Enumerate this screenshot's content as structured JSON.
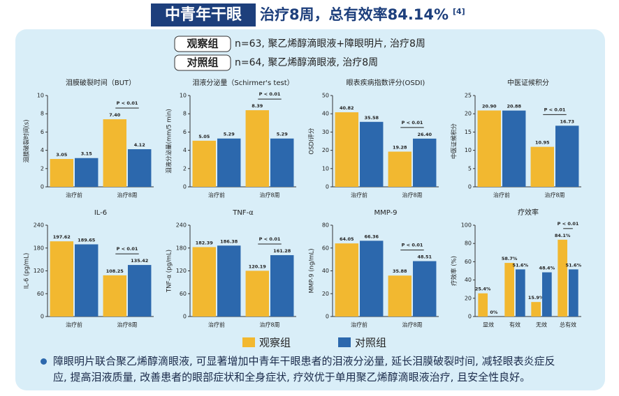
{
  "header": {
    "tag": "中青年干眼",
    "title": "治疗8周，总有效率84.14%",
    "ref": "[4]"
  },
  "groups": [
    {
      "label": "观察组",
      "desc": "n=63, 聚乙烯醇滴眼液+障眼明片, 治疗8周"
    },
    {
      "label": "对照组",
      "desc": "n=64, 聚乙烯醇滴眼液, 治疗8周"
    }
  ],
  "legend": [
    {
      "name": "观察组",
      "color": "#f2b830"
    },
    {
      "name": "对照组",
      "color": "#2c68ad"
    }
  ],
  "chart_data": [
    {
      "type": "bar",
      "title": "泪膜破裂时间（BUT）",
      "y_label": "泪膜破裂时间(s)",
      "categories": [
        "治疗前",
        "治疗8周"
      ],
      "series": [
        {
          "values": [
            3.05,
            7.4
          ],
          "value_labels": [
            "3.05",
            "7.40"
          ]
        },
        {
          "values": [
            3.15,
            4.12
          ]
        }
      ],
      "ylim": [
        0,
        10
      ],
      "yticks": [
        0,
        2,
        4,
        6,
        8,
        10
      ],
      "annotation": {
        "text": "P < 0.01",
        "category": 1
      }
    },
    {
      "type": "bar",
      "title": "泪液分泌量（Schirmer's test）",
      "y_label": "泪液分泌量(mm/5 min)",
      "categories": [
        "治疗前",
        "治疗8周"
      ],
      "series": [
        {
          "values": [
            5.05,
            8.39
          ]
        },
        {
          "values": [
            5.29,
            5.29
          ]
        }
      ],
      "ylim": [
        0,
        10
      ],
      "yticks": [
        0,
        2,
        4,
        6,
        8,
        10
      ],
      "annotation": {
        "text": "P < 0.01",
        "category": 1
      }
    },
    {
      "type": "bar",
      "title": "眼表疾病指数评分(OSDI)",
      "y_label": "OSDI评分",
      "categories": [
        "治疗前",
        "治疗8周"
      ],
      "series": [
        {
          "values": [
            40.82,
            19.28
          ]
        },
        {
          "values": [
            35.58,
            26.4
          ],
          "value_labels": [
            "35.58",
            "26.40"
          ]
        }
      ],
      "ylim": [
        0,
        50
      ],
      "yticks": [
        0,
        10,
        20,
        30,
        40,
        50
      ],
      "annotation": {
        "text": "P < 0.01",
        "category": 1
      }
    },
    {
      "type": "bar",
      "title": "中医证候积分",
      "y_label": "中医证候积分",
      "categories": [
        "治疗前",
        "治疗8周"
      ],
      "series": [
        {
          "values": [
            20.9,
            10.95
          ],
          "value_labels": [
            "20.90",
            "10.95"
          ]
        },
        {
          "values": [
            20.88,
            16.73
          ]
        }
      ],
      "ylim": [
        0,
        25
      ],
      "yticks": [
        0,
        5,
        10,
        15,
        20,
        25
      ],
      "annotation": {
        "text": "P < 0.01",
        "category": 1
      }
    },
    {
      "type": "bar",
      "title": "IL-6",
      "y_label": "IL-6 (pg/mL)",
      "categories": [
        "治疗前",
        "治疗8周"
      ],
      "series": [
        {
          "values": [
            197.62,
            108.25
          ]
        },
        {
          "values": [
            189.65,
            135.42
          ]
        }
      ],
      "ylim": [
        0,
        240
      ],
      "yticks": [
        0,
        60,
        120,
        180,
        240
      ],
      "annotation": {
        "text": "P < 0.01",
        "category": 1
      }
    },
    {
      "type": "bar",
      "title": "TNF-α",
      "y_label": "TNF-α (pg/mL)",
      "categories": [
        "治疗前",
        "治疗8周"
      ],
      "series": [
        {
          "values": [
            182.39,
            120.19
          ]
        },
        {
          "values": [
            186.38,
            161.28
          ]
        }
      ],
      "ylim": [
        0,
        240
      ],
      "yticks": [
        0,
        60,
        120,
        180,
        240
      ],
      "annotation": {
        "text": "P < 0.01",
        "category": 1
      }
    },
    {
      "type": "bar",
      "title": "MMP-9",
      "y_label": "MMP-9 (ng/mL)",
      "categories": [
        "治疗前",
        "治疗8周"
      ],
      "series": [
        {
          "values": [
            64.05,
            35.88
          ]
        },
        {
          "values": [
            66.36,
            48.51
          ]
        }
      ],
      "ylim": [
        0,
        80
      ],
      "yticks": [
        0,
        20,
        40,
        60,
        80
      ],
      "annotation": {
        "text": "P < 0.01",
        "category": 1
      }
    },
    {
      "type": "bar",
      "title": "疗效率",
      "y_label": "疗效率 (%)",
      "categories": [
        "显效",
        "有效",
        "无效",
        "总有效"
      ],
      "series": [
        {
          "values": [
            25.4,
            58.7,
            15.9,
            84.1
          ],
          "value_labels": [
            "25.4%",
            "58.7%",
            "15.9%",
            "84.1%"
          ]
        },
        {
          "values": [
            0,
            51.6,
            48.4,
            51.6
          ],
          "value_labels": [
            "0%",
            "51.6%",
            "48.4%",
            "51.6%"
          ]
        }
      ],
      "ylim": [
        0,
        100
      ],
      "yticks": [
        0,
        20,
        40,
        60,
        80,
        100
      ],
      "annotation": {
        "text": "P < 0.01",
        "category": 3
      }
    }
  ],
  "footer": "障眼明片联合聚乙烯醇滴眼液, 可显著增加中青年干眼患者的泪液分泌量, 延长泪膜破裂时间, 减轻眼表炎症反应, 提高泪液质量, 改善患者的眼部症状和全身症状, 疗效优于单用聚乙烯醇滴眼液治疗, 且安全性良好。"
}
